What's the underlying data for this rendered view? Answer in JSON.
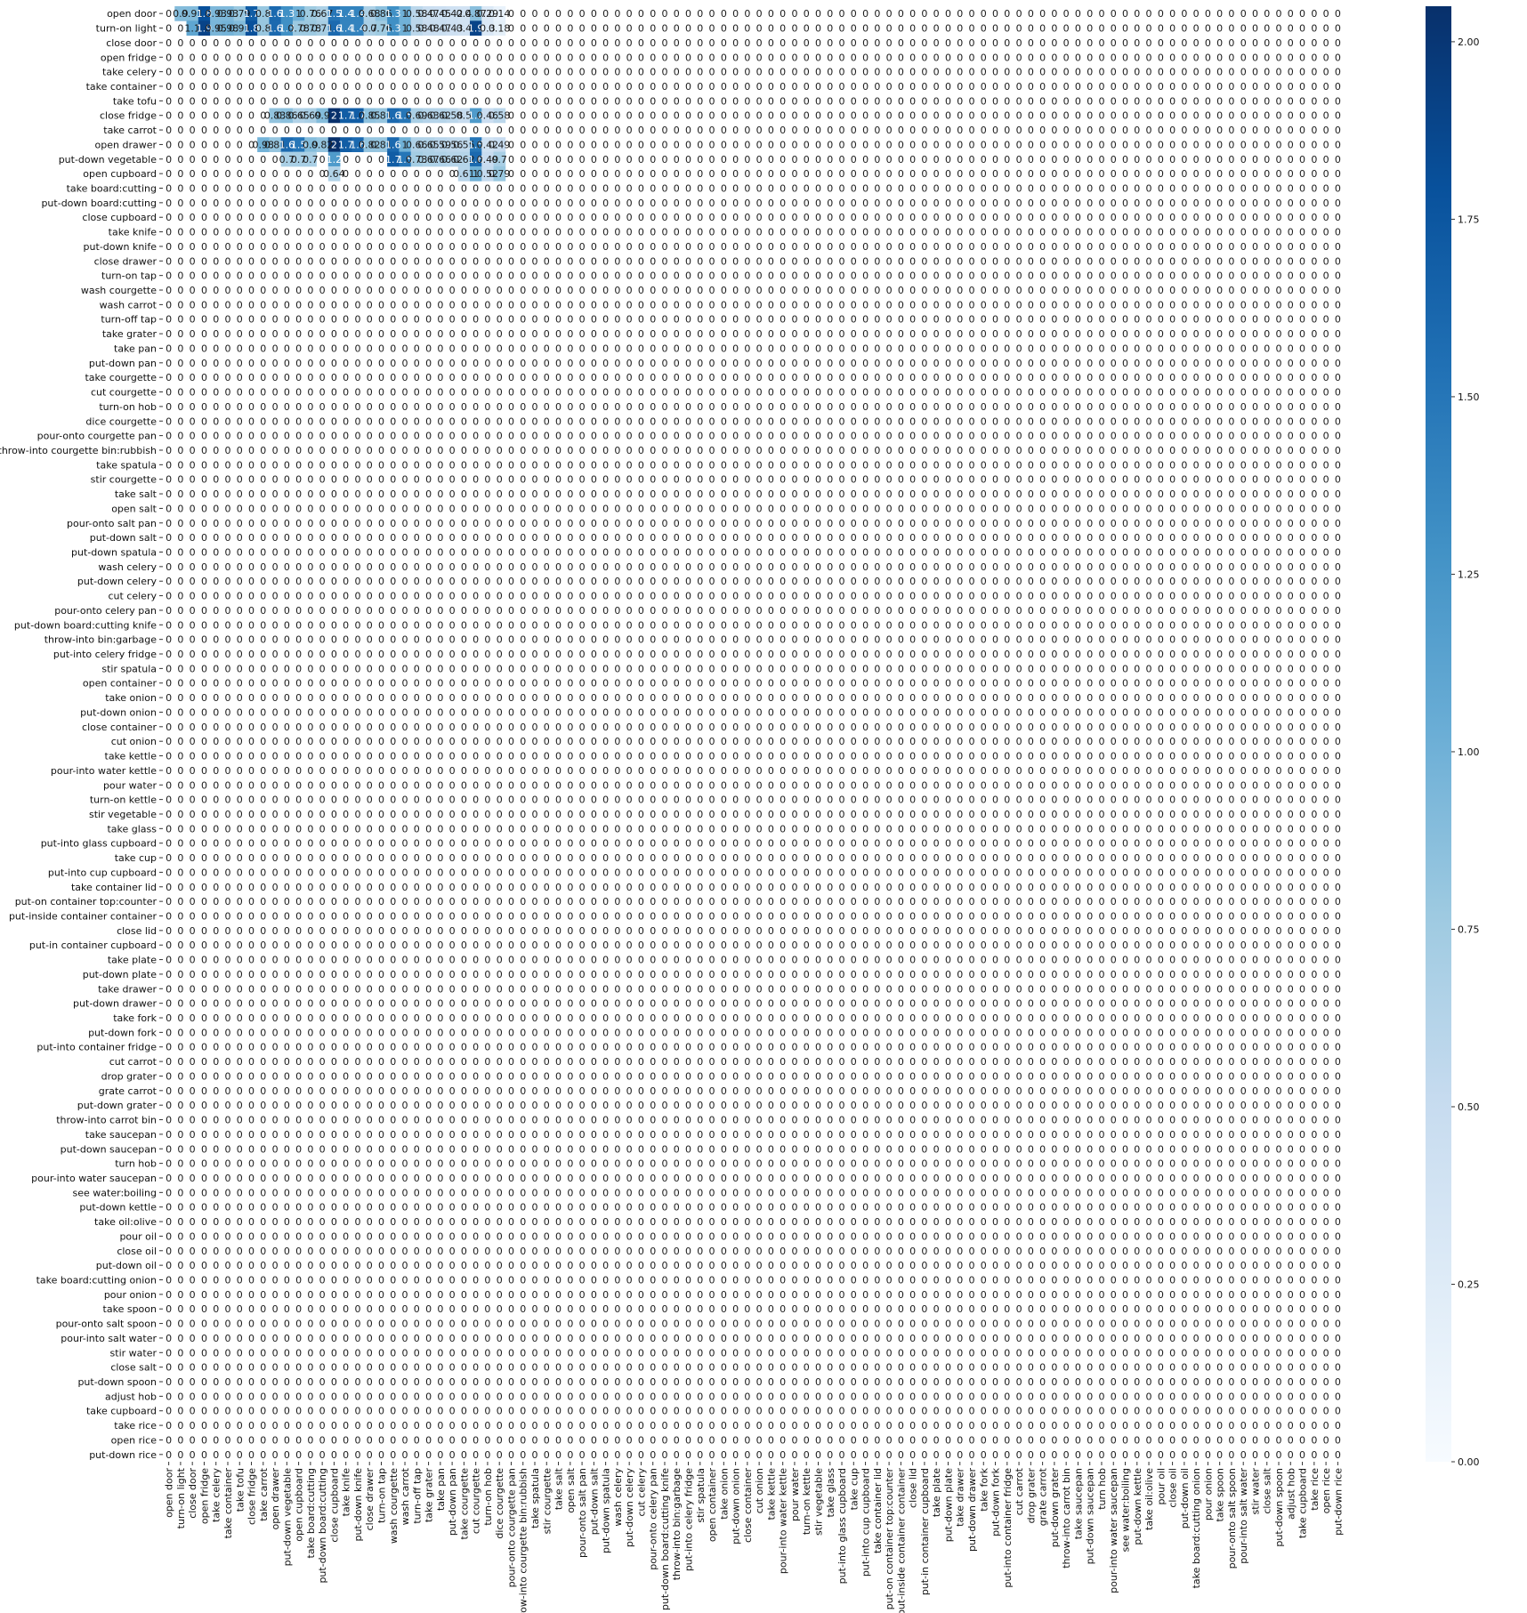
{
  "chart_data": {
    "type": "heatmap",
    "title": "",
    "xlabel": "",
    "ylabel": "",
    "labels": [
      "open door",
      "turn-on light",
      "close door",
      "open fridge",
      "take celery",
      "take container",
      "take tofu",
      "close fridge",
      "take carrot",
      "open drawer",
      "put-down vegetable",
      "open cupboard",
      "take board:cutting",
      "put-down board:cutting",
      "close cupboard",
      "take knife",
      "put-down knife",
      "close drawer",
      "turn-on tap",
      "wash courgette",
      "wash carrot",
      "turn-off tap",
      "take grater",
      "take pan",
      "put-down pan",
      "take courgette",
      "cut courgette",
      "turn-on hob",
      "dice courgette",
      "pour-onto courgette pan",
      "throw-into courgette bin:rubbish",
      "take spatula",
      "stir courgette",
      "take salt",
      "open salt",
      "pour-onto salt pan",
      "put-down salt",
      "put-down spatula",
      "wash celery",
      "put-down celery",
      "cut celery",
      "pour-onto celery pan",
      "put-down board:cutting knife",
      "throw-into bin:garbage",
      "put-into celery fridge",
      "stir spatula",
      "open container",
      "take onion",
      "put-down onion",
      "close container",
      "cut onion",
      "take kettle",
      "pour-into water kettle",
      "pour water",
      "turn-on kettle",
      "stir vegetable",
      "take glass",
      "put-into glass cupboard",
      "take cup",
      "put-into cup cupboard",
      "take container lid",
      "put-on container top:counter",
      "put-inside container container",
      "close lid",
      "put-in container cupboard",
      "take plate",
      "put-down plate",
      "take drawer",
      "put-down drawer",
      "take fork",
      "put-down fork",
      "put-into container fridge",
      "cut carrot",
      "drop grater",
      "grate carrot",
      "put-down grater",
      "throw-into carrot bin",
      "take saucepan",
      "put-down saucepan",
      "turn hob",
      "pour-into water saucepan",
      "see water:boiling",
      "put-down kettle",
      "take oil:olive",
      "pour oil",
      "close oil",
      "put-down oil",
      "take board:cutting onion",
      "pour onion",
      "take spoon",
      "pour-onto salt spoon",
      "pour-into salt water",
      "stir water",
      "close salt",
      "put-down spoon",
      "adjust hob",
      "take cupboard",
      "take rice",
      "open rice",
      "put-down rice"
    ],
    "default_value": 0,
    "nonzero_rows": [
      {
        "row": "open door",
        "cells": [
          [
            1,
            0.9
          ],
          [
            2,
            0.91
          ],
          [
            3,
            1.8
          ],
          [
            4,
            0.93
          ],
          [
            5,
            0.93
          ],
          [
            6,
            0.79
          ],
          [
            7,
            1.7
          ],
          [
            8,
            0.8
          ],
          [
            9,
            1.6
          ],
          [
            10,
            1.3
          ],
          [
            11,
            1.0
          ],
          [
            12,
            0.76
          ],
          [
            13,
            0.67
          ],
          [
            14,
            1.5
          ],
          [
            15,
            1.4
          ],
          [
            16,
            1.4
          ],
          [
            17,
            0.68
          ],
          [
            18,
            0.86
          ],
          [
            19,
            1.3
          ],
          [
            20,
            1.0
          ],
          [
            21,
            0.58
          ],
          [
            22,
            0.47
          ],
          [
            23,
            0.45
          ],
          [
            24,
            0.42
          ],
          [
            25,
            0.4
          ],
          [
            26,
            0.87
          ],
          [
            27,
            0.29
          ],
          [
            28,
            0.14
          ]
        ]
      },
      {
        "row": "turn-on light",
        "cells": [
          [
            2,
            1.1
          ],
          [
            3,
            1.9
          ],
          [
            4,
            0.95
          ],
          [
            5,
            0.98
          ],
          [
            6,
            0.91
          ],
          [
            7,
            1.8
          ],
          [
            8,
            0.8
          ],
          [
            9,
            1.6
          ],
          [
            10,
            1.3
          ],
          [
            11,
            0.78
          ],
          [
            12,
            0.78
          ],
          [
            13,
            0.71
          ],
          [
            14,
            1.6
          ],
          [
            15,
            1.4
          ],
          [
            16,
            1.4
          ],
          [
            17,
            0.7
          ],
          [
            18,
            0.76
          ],
          [
            19,
            1.3
          ],
          [
            20,
            1.0
          ],
          [
            21,
            0.58
          ],
          [
            22,
            0.48
          ],
          [
            23,
            0.47
          ],
          [
            24,
            0.43
          ],
          [
            25,
            0.4
          ],
          [
            26,
            1.9
          ],
          [
            27,
            0.3
          ],
          [
            28,
            0.18
          ]
        ]
      },
      {
        "row": "close fridge",
        "cells": [
          [
            9,
            0.83
          ],
          [
            10,
            0.86
          ],
          [
            11,
            0.65
          ],
          [
            12,
            0.69
          ],
          [
            13,
            0.9
          ],
          [
            14,
            2.05
          ],
          [
            15,
            1.7
          ],
          [
            16,
            1.7
          ],
          [
            17,
            0.85
          ],
          [
            18,
            0.81
          ],
          [
            19,
            1.6
          ],
          [
            20,
            1.5
          ],
          [
            21,
            0.69
          ],
          [
            22,
            0.63
          ],
          [
            23,
            0.62
          ],
          [
            24,
            0.58
          ],
          [
            25,
            0.5
          ],
          [
            26,
            1.2
          ],
          [
            27,
            0.46
          ],
          [
            28,
            0.58
          ]
        ]
      },
      {
        "row": "open drawer",
        "cells": [
          [
            8,
            0.98
          ],
          [
            9,
            0.81
          ],
          [
            10,
            1.6
          ],
          [
            11,
            1.5
          ],
          [
            12,
            0.9
          ],
          [
            13,
            0.82
          ],
          [
            14,
            2.05
          ],
          [
            15,
            1.7
          ],
          [
            16,
            1.6
          ],
          [
            17,
            0.82
          ],
          [
            18,
            0.81
          ],
          [
            19,
            1.6
          ],
          [
            20,
            1.0
          ],
          [
            21,
            0.66
          ],
          [
            22,
            0.65
          ],
          [
            23,
            0.59
          ],
          [
            24,
            0.56
          ],
          [
            25,
            0.55
          ],
          [
            26,
            1.5
          ],
          [
            27,
            0.42
          ],
          [
            28,
            0.49
          ]
        ]
      },
      {
        "row": "put-down vegetable",
        "cells": [
          [
            10,
            0.7
          ],
          [
            11,
            0.7
          ],
          [
            12,
            0.7
          ],
          [
            14,
            1.2
          ],
          [
            19,
            1.7
          ],
          [
            20,
            1.5
          ],
          [
            21,
            0.73
          ],
          [
            22,
            0.67
          ],
          [
            23,
            0.66
          ],
          [
            24,
            0.62
          ],
          [
            25,
            0.62
          ],
          [
            26,
            1.6
          ],
          [
            27,
            0.49
          ],
          [
            28,
            0.7
          ]
        ]
      },
      {
        "row": "open cupboard",
        "cells": [
          [
            14,
            0.64
          ],
          [
            25,
            0.61
          ],
          [
            26,
            1.0
          ],
          [
            27,
            0.52
          ],
          [
            28,
            0.79
          ]
        ]
      }
    ],
    "colorbar": {
      "min": 0.0,
      "max": 2.05,
      "ticks": [
        "0.00",
        "0.25",
        "0.50",
        "0.75",
        "1.00",
        "1.25",
        "1.50",
        "1.75",
        "2.00"
      ],
      "colormap": "Blues",
      "stops": [
        "#f7fbff",
        "#deebf7",
        "#c6dbef",
        "#9ecae1",
        "#6baed6",
        "#4292c6",
        "#2171b5",
        "#08519c",
        "#08306b"
      ]
    }
  }
}
